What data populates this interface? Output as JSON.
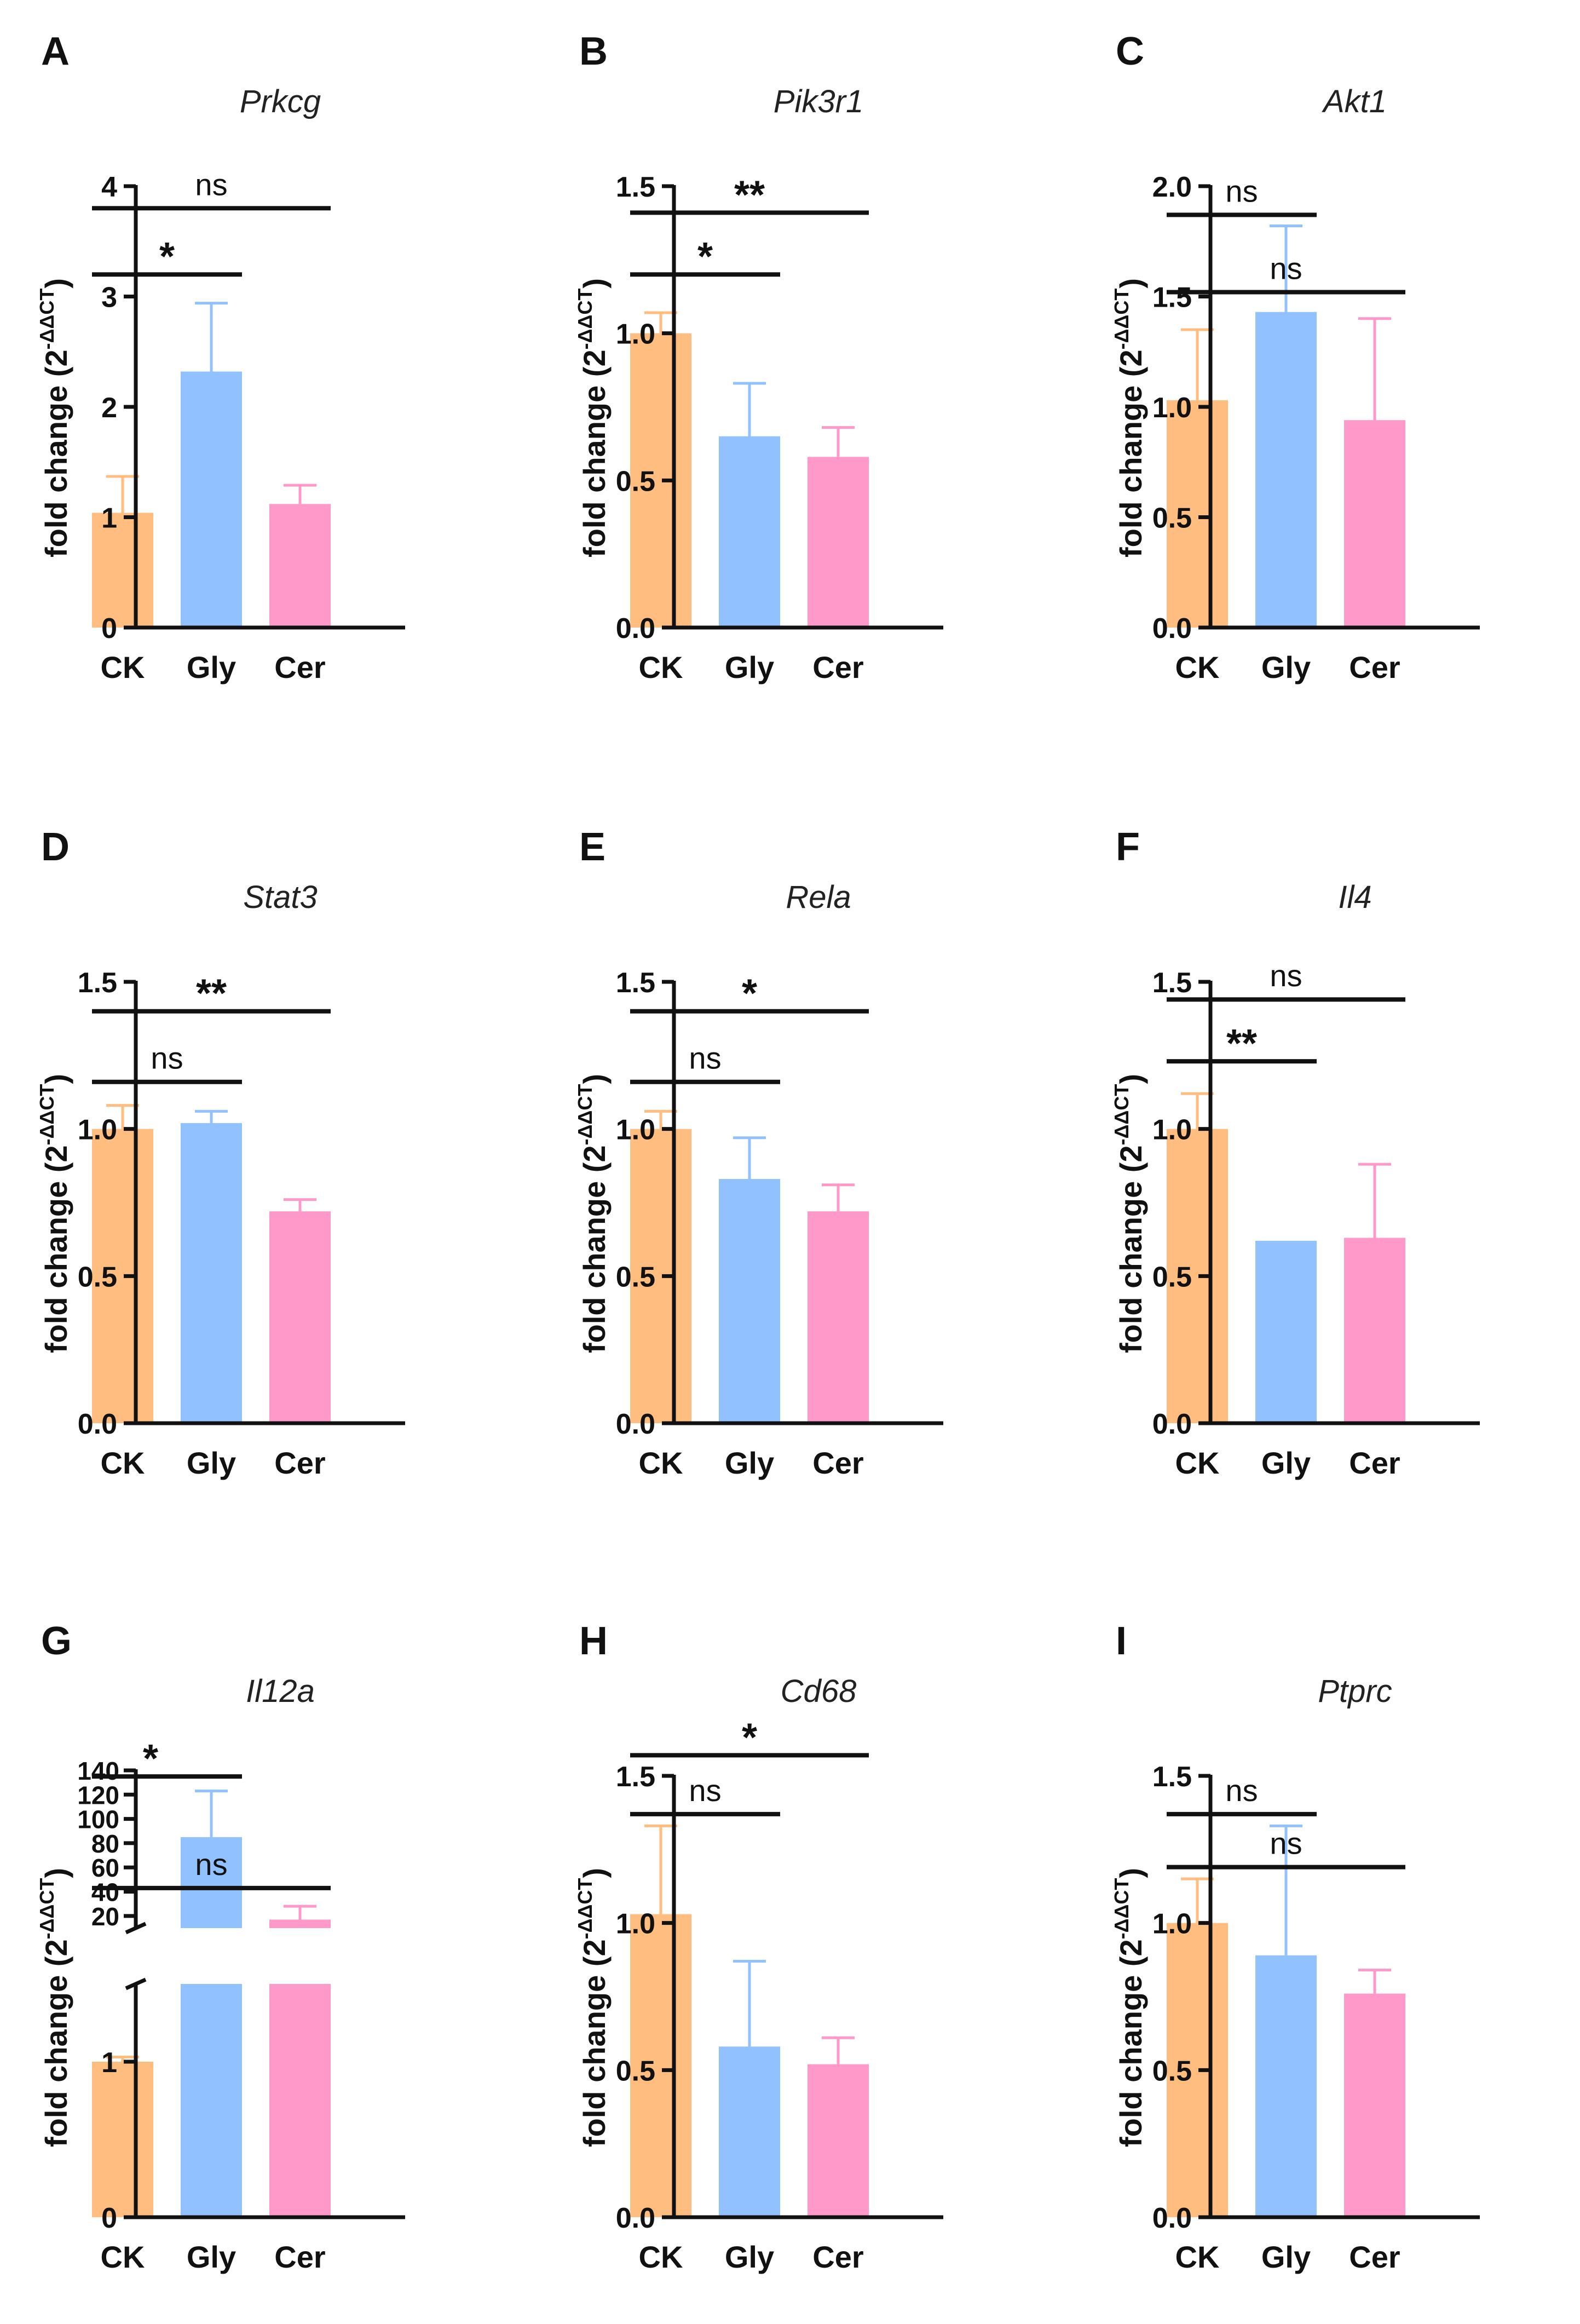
{
  "chart_data": [
    {
      "panel": "A",
      "title": "Prkcg",
      "type": "bar",
      "ylabel": "fold change (2",
      "ylabel_sup": "-ΔΔCT",
      "ylabel_close": ")",
      "categories": [
        "CK",
        "Gly",
        "Cer"
      ],
      "values": [
        1.04,
        2.32,
        1.12
      ],
      "errors": [
        0.33,
        0.62,
        0.17
      ],
      "ylim": [
        0,
        4
      ],
      "ticks": [
        0,
        1,
        2,
        3,
        4
      ],
      "tick_labels": [
        "0",
        "1",
        "2",
        "3",
        "4"
      ],
      "colors": [
        "#ffbe7f",
        "#92c1ff",
        "#ff99c9"
      ],
      "error_colors": [
        "#ffbe7f",
        "#92c1ff",
        "#ff99c9"
      ],
      "significance": [
        {
          "from": 0,
          "to": 1,
          "label": "*",
          "y": 3.2
        },
        {
          "from": 0,
          "to": 2,
          "label": "ns",
          "y": 3.8
        }
      ]
    },
    {
      "panel": "B",
      "title": "Pik3r1",
      "type": "bar",
      "ylabel": "fold change (2",
      "ylabel_sup": "-ΔΔCT",
      "ylabel_close": ")",
      "categories": [
        "CK",
        "Gly",
        "Cer"
      ],
      "values": [
        1.0,
        0.65,
        0.58
      ],
      "errors": [
        0.07,
        0.18,
        0.1
      ],
      "ylim": [
        0,
        1.5
      ],
      "ticks": [
        0,
        0.5,
        1.0,
        1.5
      ],
      "tick_labels": [
        "0.0",
        "0.5",
        "1.0",
        "1.5"
      ],
      "colors": [
        "#ffbe7f",
        "#92c1ff",
        "#ff99c9"
      ],
      "error_colors": [
        "#ffbe7f",
        "#92c1ff",
        "#ff99c9"
      ],
      "significance": [
        {
          "from": 0,
          "to": 1,
          "label": "*",
          "y": 1.2
        },
        {
          "from": 0,
          "to": 2,
          "label": "**",
          "y": 1.41
        }
      ]
    },
    {
      "panel": "C",
      "title": "Akt1",
      "type": "bar",
      "ylabel": "fold change (2",
      "ylabel_sup": "-ΔΔCT",
      "ylabel_close": ")",
      "categories": [
        "CK",
        "Gly",
        "Cer"
      ],
      "values": [
        1.03,
        1.43,
        0.94
      ],
      "errors": [
        0.32,
        0.39,
        0.46
      ],
      "ylim": [
        0,
        2.0
      ],
      "ticks": [
        0,
        0.5,
        1.0,
        1.5,
        2.0
      ],
      "tick_labels": [
        "0.0",
        "0.5",
        "1.0",
        "1.5",
        "2.0"
      ],
      "colors": [
        "#ffbe7f",
        "#92c1ff",
        "#ff99c9"
      ],
      "error_colors": [
        "#ffbe7f",
        "#92c1ff",
        "#ff99c9"
      ],
      "significance": [
        {
          "from": 0,
          "to": 1,
          "label": "ns",
          "y": 1.87
        },
        {
          "from": 0,
          "to": 2,
          "label": "ns",
          "y": 1.52
        }
      ]
    },
    {
      "panel": "D",
      "title": "Stat3",
      "type": "bar",
      "ylabel": "fold change (2",
      "ylabel_sup": "-ΔΔCT",
      "ylabel_close": ")",
      "categories": [
        "CK",
        "Gly",
        "Cer"
      ],
      "values": [
        1.0,
        1.02,
        0.72
      ],
      "errors": [
        0.08,
        0.04,
        0.04
      ],
      "ylim": [
        0,
        1.5
      ],
      "ticks": [
        0,
        0.5,
        1.0,
        1.5
      ],
      "tick_labels": [
        "0.0",
        "0.5",
        "1.0",
        "1.5"
      ],
      "colors": [
        "#ffbe7f",
        "#92c1ff",
        "#ff99c9"
      ],
      "error_colors": [
        "#ffbe7f",
        "#92c1ff",
        "#ff99c9"
      ],
      "significance": [
        {
          "from": 0,
          "to": 1,
          "label": "ns",
          "y": 1.16
        },
        {
          "from": 0,
          "to": 2,
          "label": "**",
          "y": 1.4
        }
      ]
    },
    {
      "panel": "E",
      "title": "Rela",
      "type": "bar",
      "ylabel": "fold change (2",
      "ylabel_sup": "-ΔΔCT",
      "ylabel_close": ")",
      "categories": [
        "CK",
        "Gly",
        "Cer"
      ],
      "values": [
        1.0,
        0.83,
        0.72
      ],
      "errors": [
        0.06,
        0.14,
        0.09
      ],
      "ylim": [
        0,
        1.5
      ],
      "ticks": [
        0,
        0.5,
        1.0,
        1.5
      ],
      "tick_labels": [
        "0.0",
        "0.5",
        "1.0",
        "1.5"
      ],
      "colors": [
        "#ffbe7f",
        "#92c1ff",
        "#ff99c9"
      ],
      "error_colors": [
        "#ffbe7f",
        "#92c1ff",
        "#ff99c9"
      ],
      "significance": [
        {
          "from": 0,
          "to": 1,
          "label": "ns",
          "y": 1.16
        },
        {
          "from": 0,
          "to": 2,
          "label": "*",
          "y": 1.4
        }
      ]
    },
    {
      "panel": "F",
      "title": "Il4",
      "type": "bar",
      "ylabel": "fold change (2",
      "ylabel_sup": "-ΔΔCT",
      "ylabel_close": ")",
      "categories": [
        "CK",
        "Gly",
        "Cer"
      ],
      "values": [
        1.0,
        0.62,
        0.63
      ],
      "errors": [
        0.12,
        0.0,
        0.25
      ],
      "ylim": [
        0,
        1.5
      ],
      "ticks": [
        0,
        0.5,
        1.0,
        1.5
      ],
      "tick_labels": [
        "0.0",
        "0.5",
        "1.0",
        "1.5"
      ],
      "colors": [
        "#ffbe7f",
        "#92c1ff",
        "#ff99c9"
      ],
      "error_colors": [
        "#ffbe7f",
        "#92c1ff",
        "#ff99c9"
      ],
      "significance": [
        {
          "from": 0,
          "to": 1,
          "label": "**",
          "y": 1.23
        },
        {
          "from": 0,
          "to": 2,
          "label": "ns",
          "y": 1.44
        }
      ]
    },
    {
      "panel": "G",
      "title": "Il12a",
      "type": "bar",
      "broken_axis": true,
      "ylabel": "fold change (2",
      "ylabel_sup": "-ΔΔCT",
      "ylabel_close": ")",
      "categories": [
        "CK",
        "Gly",
        "Cer"
      ],
      "values": [
        1.0,
        85,
        17
      ],
      "errors": [
        0.03,
        38,
        11
      ],
      "ylim_lower": [
        0,
        1.5
      ],
      "ylim_upper": [
        10,
        140
      ],
      "ticks_lower": [
        0,
        1
      ],
      "tick_labels_lower": [
        "0",
        "1"
      ],
      "ticks_upper": [
        20,
        40,
        60,
        80,
        100,
        120,
        140
      ],
      "tick_labels_upper": [
        "20",
        "40",
        "60",
        "80",
        "100",
        "120",
        "140"
      ],
      "colors": [
        "#ffbe7f",
        "#92c1ff",
        "#ff99c9"
      ],
      "error_colors": [
        "#ffbe7f",
        "#92c1ff",
        "#ff99c9"
      ],
      "significance": [
        {
          "from": 0,
          "to": 1,
          "label": "*",
          "y": 135
        },
        {
          "from": 0,
          "to": 2,
          "label": "ns",
          "y": 43
        }
      ]
    },
    {
      "panel": "H",
      "title": "Cd68",
      "type": "bar",
      "ylabel": "fold change (2",
      "ylabel_sup": "-ΔΔCT",
      "ylabel_close": ")",
      "categories": [
        "CK",
        "Gly",
        "Cer"
      ],
      "values": [
        1.03,
        0.58,
        0.52
      ],
      "errors": [
        0.3,
        0.29,
        0.09
      ],
      "ylim": [
        0,
        1.5
      ],
      "ticks": [
        0,
        0.5,
        1.0,
        1.5
      ],
      "tick_labels": [
        "0.0",
        "0.5",
        "1.0",
        "1.5"
      ],
      "colors": [
        "#ffbe7f",
        "#92c1ff",
        "#ff99c9"
      ],
      "error_colors": [
        "#ffbe7f",
        "#92c1ff",
        "#ff99c9"
      ],
      "significance": [
        {
          "from": 0,
          "to": 1,
          "label": "ns",
          "y": 1.37
        },
        {
          "from": 0,
          "to": 2,
          "label": "*",
          "y": 1.57
        }
      ]
    },
    {
      "panel": "I",
      "title": "Ptprc",
      "type": "bar",
      "ylabel": "fold change (2",
      "ylabel_sup": "-ΔΔCT",
      "ylabel_close": ")",
      "categories": [
        "CK",
        "Gly",
        "Cer"
      ],
      "values": [
        1.0,
        0.89,
        0.76
      ],
      "errors": [
        0.15,
        0.44,
        0.08
      ],
      "ylim": [
        0,
        1.5
      ],
      "ticks": [
        0,
        0.5,
        1.0,
        1.5
      ],
      "tick_labels": [
        "0.0",
        "0.5",
        "1.0",
        "1.5"
      ],
      "colors": [
        "#ffbe7f",
        "#92c1ff",
        "#ff99c9"
      ],
      "error_colors": [
        "#ffbe7f",
        "#92c1ff",
        "#ff99c9"
      ],
      "significance": [
        {
          "from": 0,
          "to": 1,
          "label": "ns",
          "y": 1.37
        },
        {
          "from": 0,
          "to": 2,
          "label": "ns",
          "y": 1.19
        }
      ]
    }
  ]
}
